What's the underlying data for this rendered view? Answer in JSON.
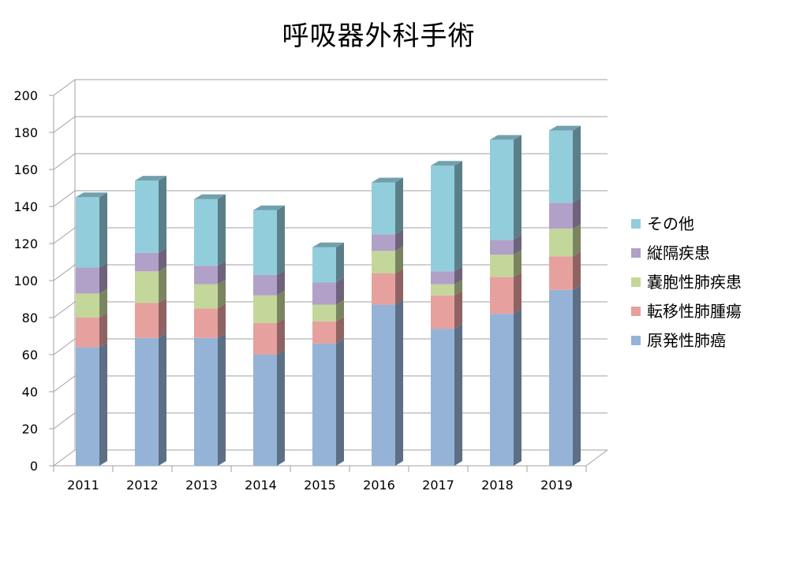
{
  "chart_data": {
    "type": "bar",
    "stacked": true,
    "style": "3d-column",
    "title": "呼吸器外科手術",
    "xlabel": "",
    "ylabel": "",
    "categories": [
      "2011",
      "2012",
      "2013",
      "2014",
      "2015",
      "2016",
      "2017",
      "2018",
      "2019"
    ],
    "ylim": [
      0,
      200
    ],
    "yticks": [
      0,
      20,
      40,
      60,
      80,
      100,
      120,
      140,
      160,
      180,
      200
    ],
    "grid": true,
    "legend_position": "right",
    "series": [
      {
        "name": "原発性肺癌",
        "color": "#95b3d7",
        "values": [
          64,
          69,
          69,
          60,
          66,
          87,
          74,
          82,
          95
        ]
      },
      {
        "name": "転移性肺腫瘍",
        "color": "#e6a09e",
        "values": [
          16,
          19,
          16,
          17,
          12,
          17,
          18,
          20,
          18
        ]
      },
      {
        "name": "嚢胞性肺疾患",
        "color": "#c4d79b",
        "values": [
          13,
          17,
          13,
          15,
          9,
          12,
          6,
          12,
          15
        ]
      },
      {
        "name": "縦隔疾患",
        "color": "#b1a0c7",
        "values": [
          14,
          10,
          10,
          11,
          12,
          9,
          7,
          8,
          14
        ]
      },
      {
        "name": "その他",
        "color": "#92cddc",
        "values": [
          38,
          39,
          36,
          35,
          19,
          28,
          57,
          54,
          39
        ]
      }
    ]
  }
}
